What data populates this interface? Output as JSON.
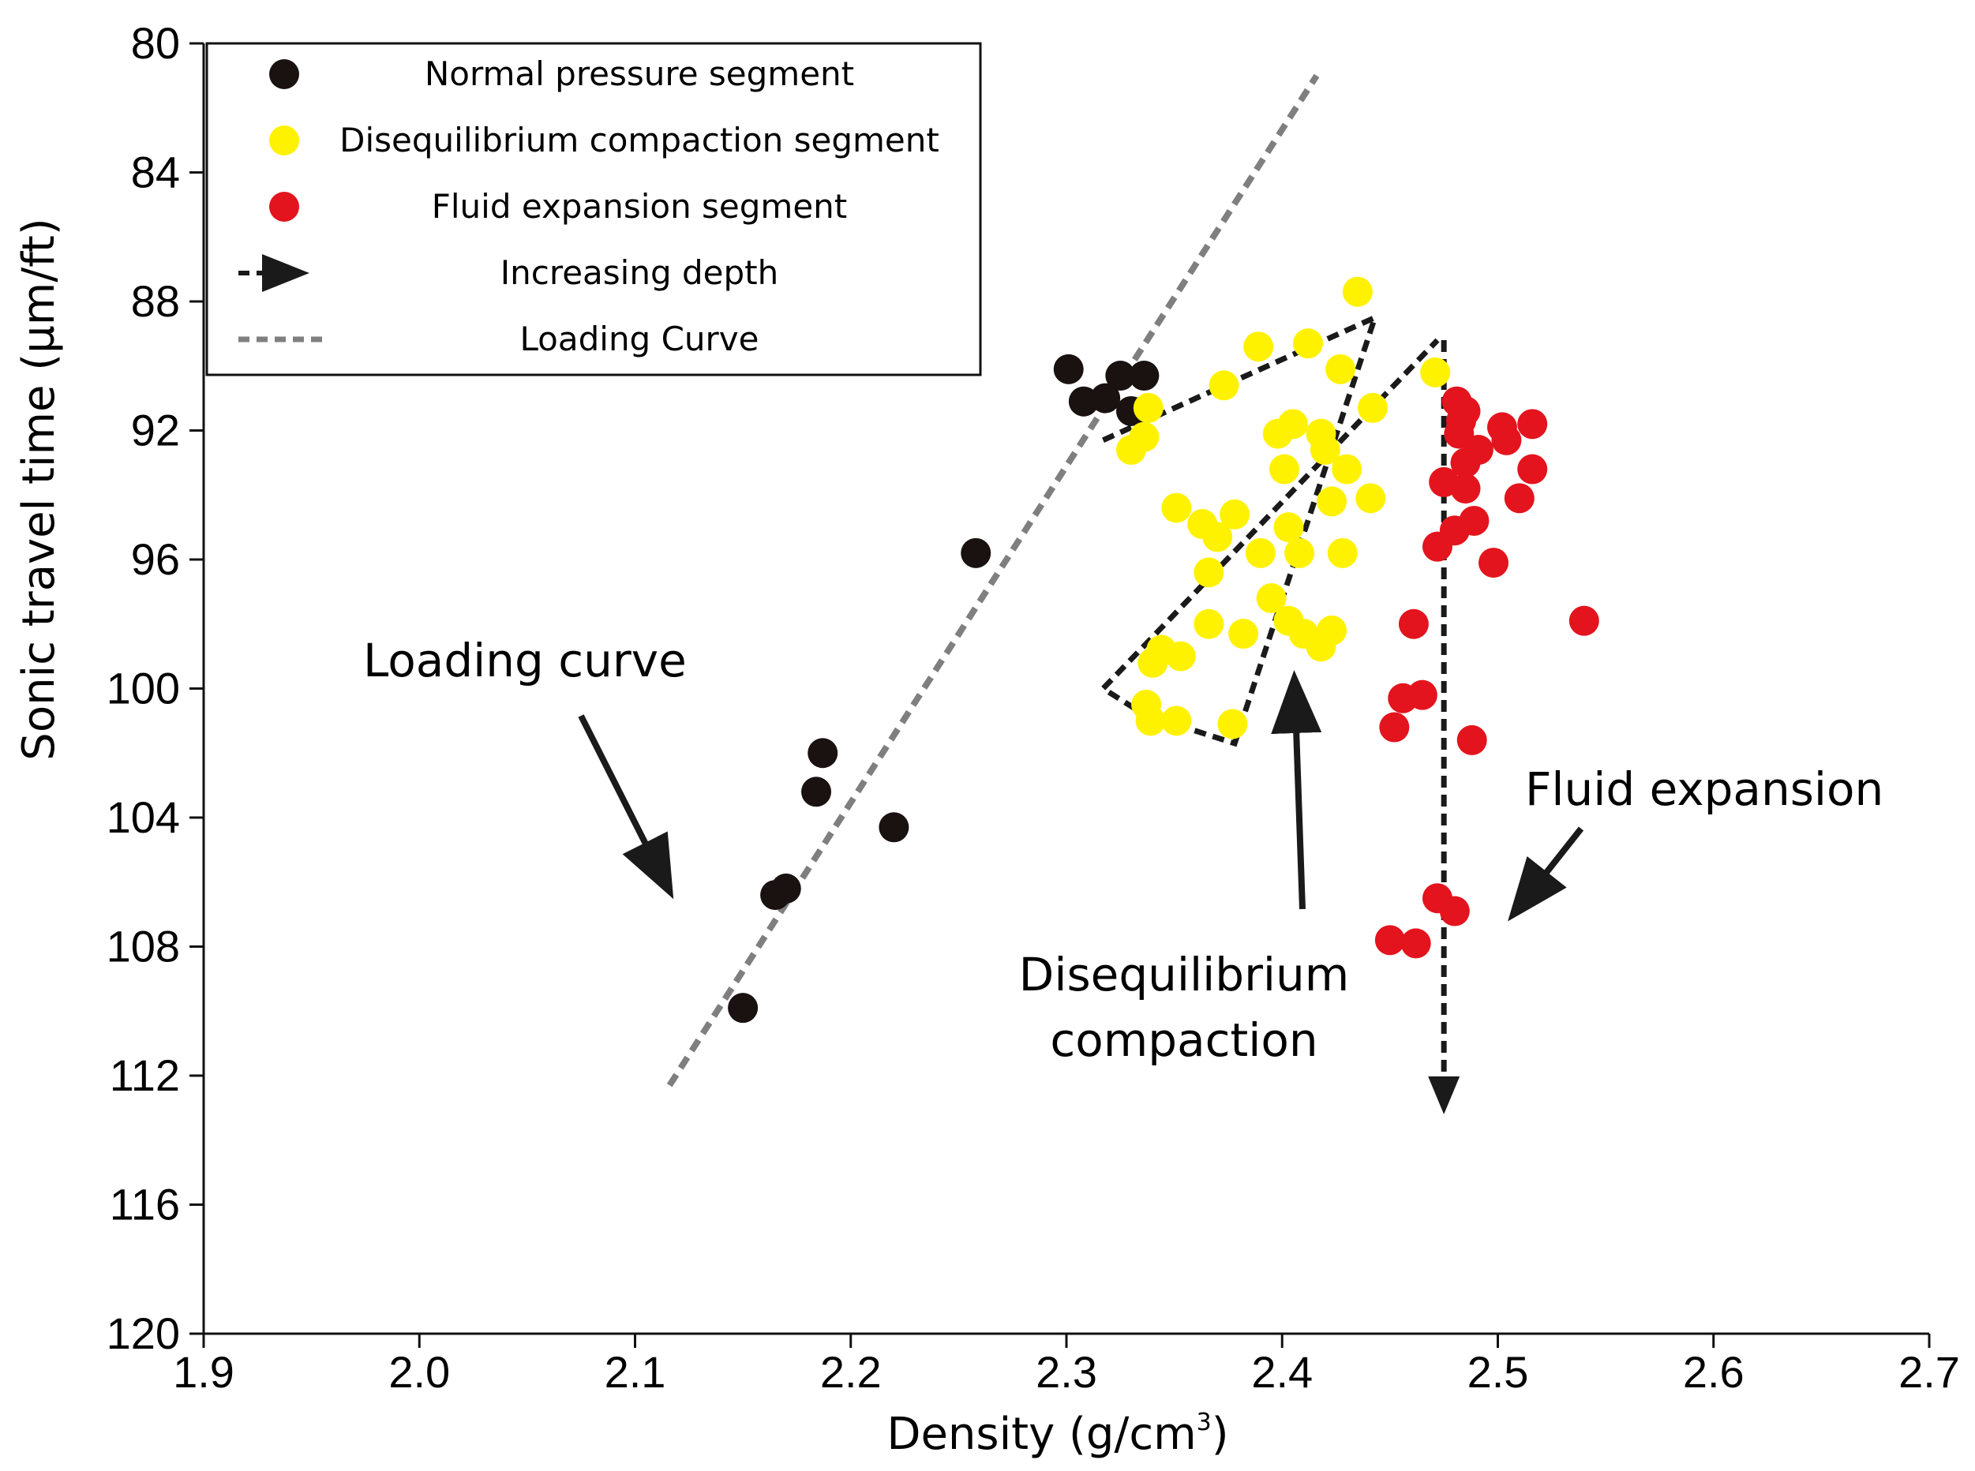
{
  "chart_data": {
    "type": "scatter",
    "title": "",
    "xlabel": "Density (g/cm",
    "xlabel_sup": "3",
    "xlabel_close": ")",
    "ylabel": "Sonic travel time (µm/ft)",
    "xlim": [
      1.9,
      2.7
    ],
    "ylim": [
      80,
      120
    ],
    "y_inverted": true,
    "x_ticks": [
      1.9,
      2.0,
      2.1,
      2.2,
      2.3,
      2.4,
      2.5,
      2.6,
      2.7
    ],
    "x_tick_labels": [
      "1.9",
      "2.0",
      "2.1",
      "2.2",
      "2.3",
      "2.4",
      "2.5",
      "2.6",
      "2.7"
    ],
    "y_ticks": [
      80,
      84,
      88,
      92,
      96,
      100,
      104,
      108,
      112,
      116,
      120
    ],
    "y_tick_labels": [
      "80",
      "84",
      "88",
      "92",
      "96",
      "100",
      "104",
      "108",
      "112",
      "116",
      "120"
    ],
    "grid": false,
    "legend_position": "top-left",
    "series": [
      {
        "name": "Normal pressure segment",
        "color": "#1a1111",
        "points": [
          [
            2.301,
            90.1
          ],
          [
            2.308,
            91.1
          ],
          [
            2.318,
            91.0
          ],
          [
            2.325,
            90.3
          ],
          [
            2.33,
            91.4
          ],
          [
            2.336,
            90.3
          ],
          [
            2.258,
            95.8
          ],
          [
            2.187,
            102.0
          ],
          [
            2.184,
            103.2
          ],
          [
            2.22,
            104.3
          ],
          [
            2.165,
            106.4
          ],
          [
            2.17,
            106.2
          ],
          [
            2.15,
            109.9
          ]
        ]
      },
      {
        "name": "Disequilibrium compaction segment",
        "color": "#fff200",
        "points": [
          [
            2.435,
            87.7
          ],
          [
            2.389,
            89.4
          ],
          [
            2.412,
            89.3
          ],
          [
            2.427,
            90.1
          ],
          [
            2.471,
            90.2
          ],
          [
            2.373,
            90.6
          ],
          [
            2.338,
            91.3
          ],
          [
            2.442,
            91.3
          ],
          [
            2.336,
            92.2
          ],
          [
            2.33,
            92.6
          ],
          [
            2.398,
            92.1
          ],
          [
            2.405,
            91.8
          ],
          [
            2.418,
            92.1
          ],
          [
            2.42,
            92.6
          ],
          [
            2.43,
            93.2
          ],
          [
            2.401,
            93.2
          ],
          [
            2.441,
            94.1
          ],
          [
            2.423,
            94.2
          ],
          [
            2.351,
            94.4
          ],
          [
            2.363,
            94.9
          ],
          [
            2.378,
            94.6
          ],
          [
            2.37,
            95.3
          ],
          [
            2.403,
            95.0
          ],
          [
            2.39,
            95.8
          ],
          [
            2.408,
            95.8
          ],
          [
            2.428,
            95.8
          ],
          [
            2.366,
            96.4
          ],
          [
            2.395,
            97.2
          ],
          [
            2.366,
            98.0
          ],
          [
            2.382,
            98.3
          ],
          [
            2.403,
            97.9
          ],
          [
            2.41,
            98.3
          ],
          [
            2.418,
            98.7
          ],
          [
            2.423,
            98.2
          ],
          [
            2.344,
            98.8
          ],
          [
            2.34,
            99.2
          ],
          [
            2.353,
            99.0
          ],
          [
            2.337,
            100.5
          ],
          [
            2.339,
            101.0
          ],
          [
            2.351,
            101.0
          ],
          [
            2.377,
            101.1
          ]
        ]
      },
      {
        "name": "Fluid expansion segment",
        "color": "#e3141d",
        "points": [
          [
            2.481,
            91.1
          ],
          [
            2.485,
            91.4
          ],
          [
            2.483,
            91.7
          ],
          [
            2.482,
            92.1
          ],
          [
            2.502,
            91.9
          ],
          [
            2.516,
            91.8
          ],
          [
            2.504,
            92.3
          ],
          [
            2.491,
            92.6
          ],
          [
            2.485,
            93.0
          ],
          [
            2.516,
            93.2
          ],
          [
            2.475,
            93.6
          ],
          [
            2.485,
            93.8
          ],
          [
            2.51,
            94.1
          ],
          [
            2.489,
            94.8
          ],
          [
            2.48,
            95.1
          ],
          [
            2.472,
            95.6
          ],
          [
            2.498,
            96.1
          ],
          [
            2.461,
            98.0
          ],
          [
            2.54,
            97.9
          ],
          [
            2.456,
            100.3
          ],
          [
            2.465,
            100.2
          ],
          [
            2.452,
            101.2
          ],
          [
            2.488,
            101.6
          ],
          [
            2.472,
            106.5
          ],
          [
            2.48,
            106.9
          ],
          [
            2.45,
            107.8
          ],
          [
            2.462,
            107.9
          ]
        ]
      }
    ],
    "loading_curve": [
      [
        2.116,
        112.3
      ],
      [
        2.416,
        81.0
      ]
    ],
    "depth_paths": [
      [
        [
          2.317,
          92.3
        ],
        [
          2.443,
          88.5
        ],
        [
          2.378,
          101.7
        ],
        [
          2.336,
          100.8
        ],
        [
          2.317,
          100.0
        ],
        [
          2.472,
          89.2
        ]
      ],
      [
        [
          2.475,
          89.2
        ],
        [
          2.475,
          113.2
        ]
      ]
    ],
    "legend": [
      {
        "kind": "marker",
        "color": "#1a1111",
        "label": "Normal pressure segment"
      },
      {
        "kind": "marker",
        "color": "#fff200",
        "label": "Disequilibrium compaction segment"
      },
      {
        "kind": "marker",
        "color": "#e3141d",
        "label": "Fluid expansion segment"
      },
      {
        "kind": "arrow",
        "color": "#1a1a1a",
        "label": "Increasing depth"
      },
      {
        "kind": "dashed",
        "color": "#7f7f7f",
        "label": "Loading Curve"
      }
    ],
    "annotations": {
      "loading_curve": "Loading curve",
      "disequilibrium_line1": "Disequilibrium",
      "disequilibrium_line2": "compaction",
      "fluid_expansion": "Fluid expansion"
    }
  }
}
